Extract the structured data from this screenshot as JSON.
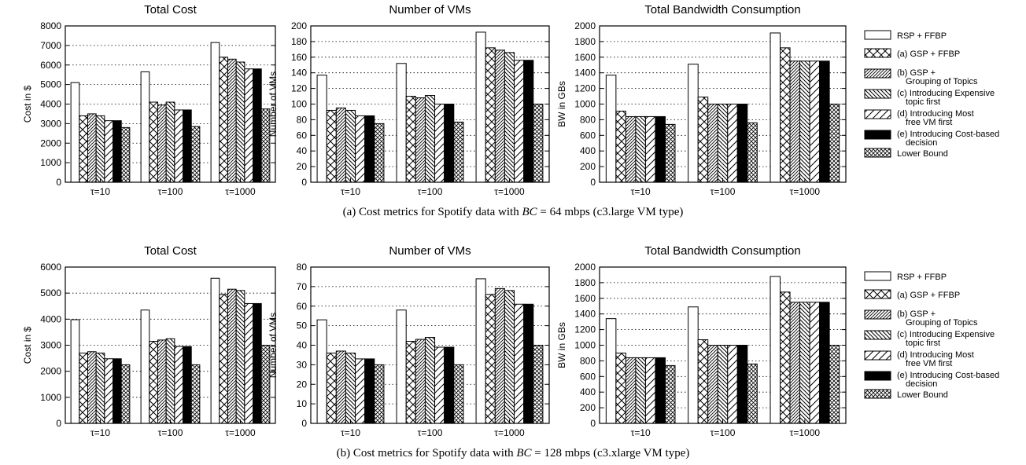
{
  "legend": {
    "entries": [
      {
        "label_lines": [
          "RSP + FFBP"
        ],
        "pattern": "white"
      },
      {
        "label_lines": [
          "(a) GSP  + FFBP"
        ],
        "pattern": "cross"
      },
      {
        "label_lines": [
          "(b) GSP +",
          "Grouping of Topics"
        ],
        "pattern": "fwd"
      },
      {
        "label_lines": [
          "(c) Introducing Expensive",
          "topic first"
        ],
        "pattern": "back"
      },
      {
        "label_lines": [
          "(d) Introducing Most",
          "free VM first"
        ],
        "pattern": "fwd-sparse"
      },
      {
        "label_lines": [
          "(e) Introducing Cost-based",
          "decision"
        ],
        "pattern": "black"
      },
      {
        "label_lines": [
          "Lower Bound"
        ],
        "pattern": "crosshatch"
      }
    ]
  },
  "rows": [
    {
      "caption": {
        "prefix": "(a) Cost metrics for Spotify data with ",
        "var": "BC",
        "suffix": " = 64 mbps (c3.large VM type)"
      }
    },
    {
      "caption": {
        "prefix": "(b) Cost metrics for Spotify data with ",
        "var": "BC",
        "suffix": " = 128 mbps (c3.xlarge VM type)"
      }
    }
  ],
  "chart_data": [
    {
      "type": "bar",
      "row": 0,
      "col": 0,
      "title": "Total Cost",
      "ylabel": "Cost in $",
      "ylim": [
        0,
        8000
      ],
      "ystep": 1000,
      "grid": "dotted-horizontal",
      "categories": [
        "τ=10",
        "τ=100",
        "τ=1000"
      ],
      "series": [
        {
          "name": "RSP + FFBP",
          "values": [
            5100,
            5650,
            7150
          ]
        },
        {
          "name": "(a) GSP  + FFBP",
          "values": [
            3400,
            4100,
            6400
          ]
        },
        {
          "name": "(b) GSP + Grouping of Topics",
          "values": [
            3500,
            3950,
            6300
          ]
        },
        {
          "name": "(c) Introducing Expensive topic first",
          "values": [
            3400,
            4100,
            6150
          ]
        },
        {
          "name": "(d) Introducing Most free VM first",
          "values": [
            3150,
            3700,
            5800
          ]
        },
        {
          "name": "(e) Introducing Cost-based decision",
          "values": [
            3150,
            3700,
            5800
          ]
        },
        {
          "name": "Lower Bound",
          "values": [
            2800,
            2850,
            3750
          ]
        }
      ]
    },
    {
      "type": "bar",
      "row": 0,
      "col": 1,
      "title": "Number of VMs",
      "ylabel": "Number of VMs",
      "ylim": [
        0,
        200
      ],
      "ystep": 20,
      "grid": "dotted-horizontal",
      "categories": [
        "τ=10",
        "τ=100",
        "τ=1000"
      ],
      "series": [
        {
          "name": "RSP + FFBP",
          "values": [
            137,
            152,
            192
          ]
        },
        {
          "name": "(a) GSP  + FFBP",
          "values": [
            92,
            110,
            172
          ]
        },
        {
          "name": "(b) GSP + Grouping of Topics",
          "values": [
            95,
            108,
            169
          ]
        },
        {
          "name": "(c) Introducing Expensive topic first",
          "values": [
            92,
            111,
            166
          ]
        },
        {
          "name": "(d) Introducing Most free VM first",
          "values": [
            85,
            100,
            156
          ]
        },
        {
          "name": "(e) Introducing Cost-based decision",
          "values": [
            85,
            100,
            156
          ]
        },
        {
          "name": "Lower Bound",
          "values": [
            75,
            77,
            100
          ]
        }
      ]
    },
    {
      "type": "bar",
      "row": 0,
      "col": 2,
      "title": "Total Bandwidth Consumption",
      "ylabel": "BW in GBs",
      "ylim": [
        0,
        2000
      ],
      "ystep": 200,
      "grid": "dotted-horizontal",
      "categories": [
        "τ=10",
        "τ=100",
        "τ=1000"
      ],
      "series": [
        {
          "name": "RSP + FFBP",
          "values": [
            1370,
            1510,
            1910
          ]
        },
        {
          "name": "(a) GSP  + FFBP",
          "values": [
            910,
            1090,
            1720
          ]
        },
        {
          "name": "(b) GSP + Grouping of Topics",
          "values": [
            840,
            1000,
            1550
          ]
        },
        {
          "name": "(c) Introducing Expensive topic first",
          "values": [
            840,
            1000,
            1550
          ]
        },
        {
          "name": "(d) Introducing Most free VM first",
          "values": [
            840,
            1000,
            1550
          ]
        },
        {
          "name": "(e) Introducing Cost-based decision",
          "values": [
            840,
            1000,
            1550
          ]
        },
        {
          "name": "Lower Bound",
          "values": [
            740,
            760,
            1000
          ]
        }
      ]
    },
    {
      "type": "bar",
      "row": 1,
      "col": 0,
      "title": "Total Cost",
      "ylabel": "Cost in $",
      "ylim": [
        0,
        6000
      ],
      "ystep": 1000,
      "grid": "dotted-horizontal",
      "categories": [
        "τ=10",
        "τ=100",
        "τ=1000"
      ],
      "series": [
        {
          "name": "RSP + FFBP",
          "values": [
            3980,
            4350,
            5570
          ]
        },
        {
          "name": "(a) GSP  + FFBP",
          "values": [
            2700,
            3150,
            4950
          ]
        },
        {
          "name": "(b) GSP + Grouping of Topics",
          "values": [
            2750,
            3200,
            5150
          ]
        },
        {
          "name": "(c) Introducing Expensive topic first",
          "values": [
            2700,
            3250,
            5100
          ]
        },
        {
          "name": "(d) Introducing Most free VM first",
          "values": [
            2480,
            2950,
            4600
          ]
        },
        {
          "name": "(e) Introducing Cost-based decision",
          "values": [
            2480,
            2950,
            4600
          ]
        },
        {
          "name": "Lower Bound",
          "values": [
            2250,
            2250,
            3000
          ]
        }
      ]
    },
    {
      "type": "bar",
      "row": 1,
      "col": 1,
      "title": "Number of VMs",
      "ylabel": "Number of VMs",
      "ylim": [
        0,
        80
      ],
      "ystep": 10,
      "grid": "dotted-horizontal",
      "categories": [
        "τ=10",
        "τ=100",
        "τ=1000"
      ],
      "series": [
        {
          "name": "RSP + FFBP",
          "values": [
            53,
            58,
            74
          ]
        },
        {
          "name": "(a) GSP  + FFBP",
          "values": [
            36,
            42,
            66
          ]
        },
        {
          "name": "(b) GSP + Grouping of Topics",
          "values": [
            37,
            43,
            69
          ]
        },
        {
          "name": "(c) Introducing Expensive topic first",
          "values": [
            36,
            44,
            68
          ]
        },
        {
          "name": "(d) Introducing Most free VM first",
          "values": [
            33,
            39,
            61
          ]
        },
        {
          "name": "(e) Introducing Cost-based decision",
          "values": [
            33,
            39,
            61
          ]
        },
        {
          "name": "Lower Bound",
          "values": [
            30,
            30,
            40
          ]
        }
      ]
    },
    {
      "type": "bar",
      "row": 1,
      "col": 2,
      "title": "Total Bandwidth Consumption",
      "ylabel": "BW in GBs",
      "ylim": [
        0,
        2000
      ],
      "ystep": 200,
      "grid": "dotted-horizontal",
      "categories": [
        "τ=10",
        "τ=100",
        "τ=1000"
      ],
      "series": [
        {
          "name": "RSP + FFBP",
          "values": [
            1340,
            1490,
            1880
          ]
        },
        {
          "name": "(a) GSP  + FFBP",
          "values": [
            900,
            1070,
            1680
          ]
        },
        {
          "name": "(b) GSP + Grouping of Topics",
          "values": [
            840,
            1000,
            1550
          ]
        },
        {
          "name": "(c) Introducing Expensive topic first",
          "values": [
            840,
            1000,
            1550
          ]
        },
        {
          "name": "(d) Introducing Most free VM first",
          "values": [
            840,
            1000,
            1550
          ]
        },
        {
          "name": "(e) Introducing Cost-based decision",
          "values": [
            840,
            1000,
            1550
          ]
        },
        {
          "name": "Lower Bound",
          "values": [
            740,
            760,
            1000
          ]
        }
      ]
    }
  ]
}
